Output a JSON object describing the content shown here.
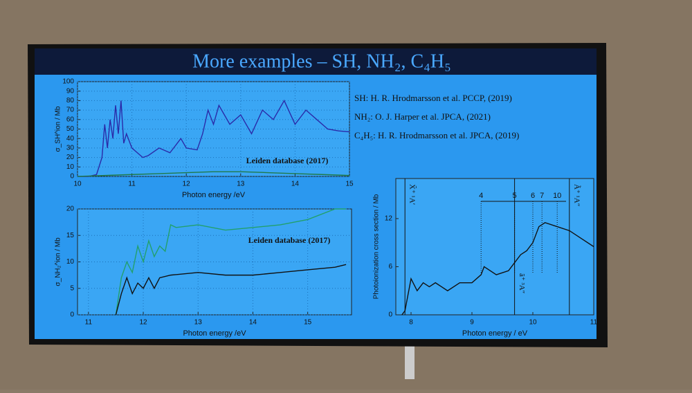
{
  "slide": {
    "title": "More examples – SH, NH₂, C₄H₅",
    "references": [
      "SH: H. R. Hrodmarsson et al. PCCP, (2019)",
      "NH₂: O. J. Harper et al. JPCA, (2021)",
      "C₄H₅: H. R. Hrodmarsson et al. JPCA, (2019)"
    ]
  },
  "chart_data": [
    {
      "type": "line",
      "x_label": "Photon energy /eV",
      "y_label": "σ_SH^ion / Mb",
      "annotation": "Leiden database (2017)",
      "xlim": [
        10,
        15
      ],
      "xticks": [
        10,
        11,
        12,
        13,
        14,
        15
      ],
      "ylim": [
        0,
        100
      ],
      "yticks": [
        0,
        10,
        20,
        30,
        40,
        50,
        60,
        70,
        80,
        90,
        100
      ],
      "grid": true,
      "series": [
        {
          "color": "#2a2aa8",
          "x": [
            10.0,
            10.2,
            10.35,
            10.45,
            10.5,
            10.55,
            10.6,
            10.65,
            10.7,
            10.75,
            10.8,
            10.85,
            10.9,
            11.0,
            11.1,
            11.2,
            11.3,
            11.5,
            11.7,
            11.9,
            12.0,
            12.2,
            12.3,
            12.4,
            12.5,
            12.6,
            12.8,
            13.0,
            13.2,
            13.4,
            13.6,
            13.8,
            14.0,
            14.2,
            14.4,
            14.6,
            14.8,
            15.0
          ],
          "values": [
            0,
            0,
            2,
            20,
            55,
            30,
            60,
            40,
            75,
            45,
            80,
            35,
            45,
            30,
            25,
            20,
            22,
            30,
            25,
            40,
            30,
            28,
            45,
            70,
            55,
            75,
            55,
            65,
            45,
            70,
            60,
            80,
            55,
            70,
            60,
            50,
            48,
            47
          ]
        },
        {
          "color": "#1f7a4a",
          "x": [
            10.0,
            10.5,
            11.0,
            11.5,
            12.0,
            12.5,
            13.0,
            13.5,
            14.0,
            14.5,
            15.0
          ],
          "values": [
            0,
            1,
            2,
            3,
            4,
            5,
            5,
            4,
            3,
            2,
            1
          ]
        }
      ]
    },
    {
      "type": "line",
      "x_label": "Photon energy /eV",
      "y_label": "σ_NH₂^ion / Mb",
      "annotation": "Leiden database (2017)",
      "xlim": [
        10.8,
        15.8
      ],
      "xticks": [
        11,
        12,
        13,
        14,
        15
      ],
      "ylim": [
        0,
        20
      ],
      "yticks": [
        0,
        5,
        10,
        15,
        20
      ],
      "grid": true,
      "series": [
        {
          "color": "#22a06c",
          "x": [
            11.5,
            11.6,
            11.7,
            11.8,
            11.9,
            12.0,
            12.1,
            12.2,
            12.3,
            12.4,
            12.5,
            12.6,
            13.0,
            13.5,
            14.0,
            14.5,
            15.0,
            15.5,
            15.7
          ],
          "values": [
            0,
            7,
            10,
            8,
            13,
            10,
            14,
            11,
            13,
            12,
            17,
            16.5,
            17,
            16,
            16.5,
            17,
            18,
            20,
            20
          ]
        },
        {
          "color": "#111111",
          "x": [
            11.5,
            11.6,
            11.7,
            11.8,
            11.9,
            12.0,
            12.1,
            12.2,
            12.3,
            12.5,
            13.0,
            13.5,
            14.0,
            14.5,
            15.0,
            15.5,
            15.7
          ],
          "values": [
            0,
            4,
            7,
            4,
            6,
            5,
            7,
            5,
            7,
            7.5,
            8,
            7.5,
            7.5,
            8,
            8.5,
            9,
            9.5
          ]
        }
      ]
    },
    {
      "type": "line",
      "x_label": "Photon energy / eV",
      "y_label": "Photoionization cross section / Mb",
      "xlim": [
        7.75,
        11
      ],
      "xticks": [
        8,
        9,
        10,
        11
      ],
      "ylim": [
        0,
        17
      ],
      "yticks": [
        0,
        6,
        12
      ],
      "grid": false,
      "series": [
        {
          "color": "#111111",
          "x": [
            7.85,
            7.9,
            7.95,
            8.0,
            8.1,
            8.2,
            8.3,
            8.4,
            8.6,
            8.8,
            9.0,
            9.15,
            9.2,
            9.4,
            9.6,
            9.7,
            9.8,
            9.9,
            10.0,
            10.1,
            10.2,
            10.4,
            10.6,
            10.8,
            11.0
          ],
          "values": [
            0,
            0.5,
            2.5,
            4.5,
            3,
            4,
            3.5,
            4,
            3,
            4,
            4,
            5,
            6,
            5,
            5.5,
            6.5,
            7.5,
            8,
            9,
            11,
            11.5,
            11,
            10.5,
            9.5,
            8.5
          ]
        }
      ],
      "state_labels": [
        {
          "label": "X̃⁺ ¹A′",
          "x": 7.9
        },
        {
          "label": "ã⁺ ³A″",
          "x": 9.7
        },
        {
          "label": "Ã⁺ ¹A″",
          "x": 10.6
        }
      ],
      "band_labels": [
        {
          "label": "4",
          "x": 9.15
        },
        {
          "label": "5",
          "x": 9.7
        },
        {
          "label": "6",
          "x": 10.0
        },
        {
          "label": "7",
          "x": 10.15
        },
        {
          "label": "10",
          "x": 10.4
        }
      ]
    }
  ]
}
